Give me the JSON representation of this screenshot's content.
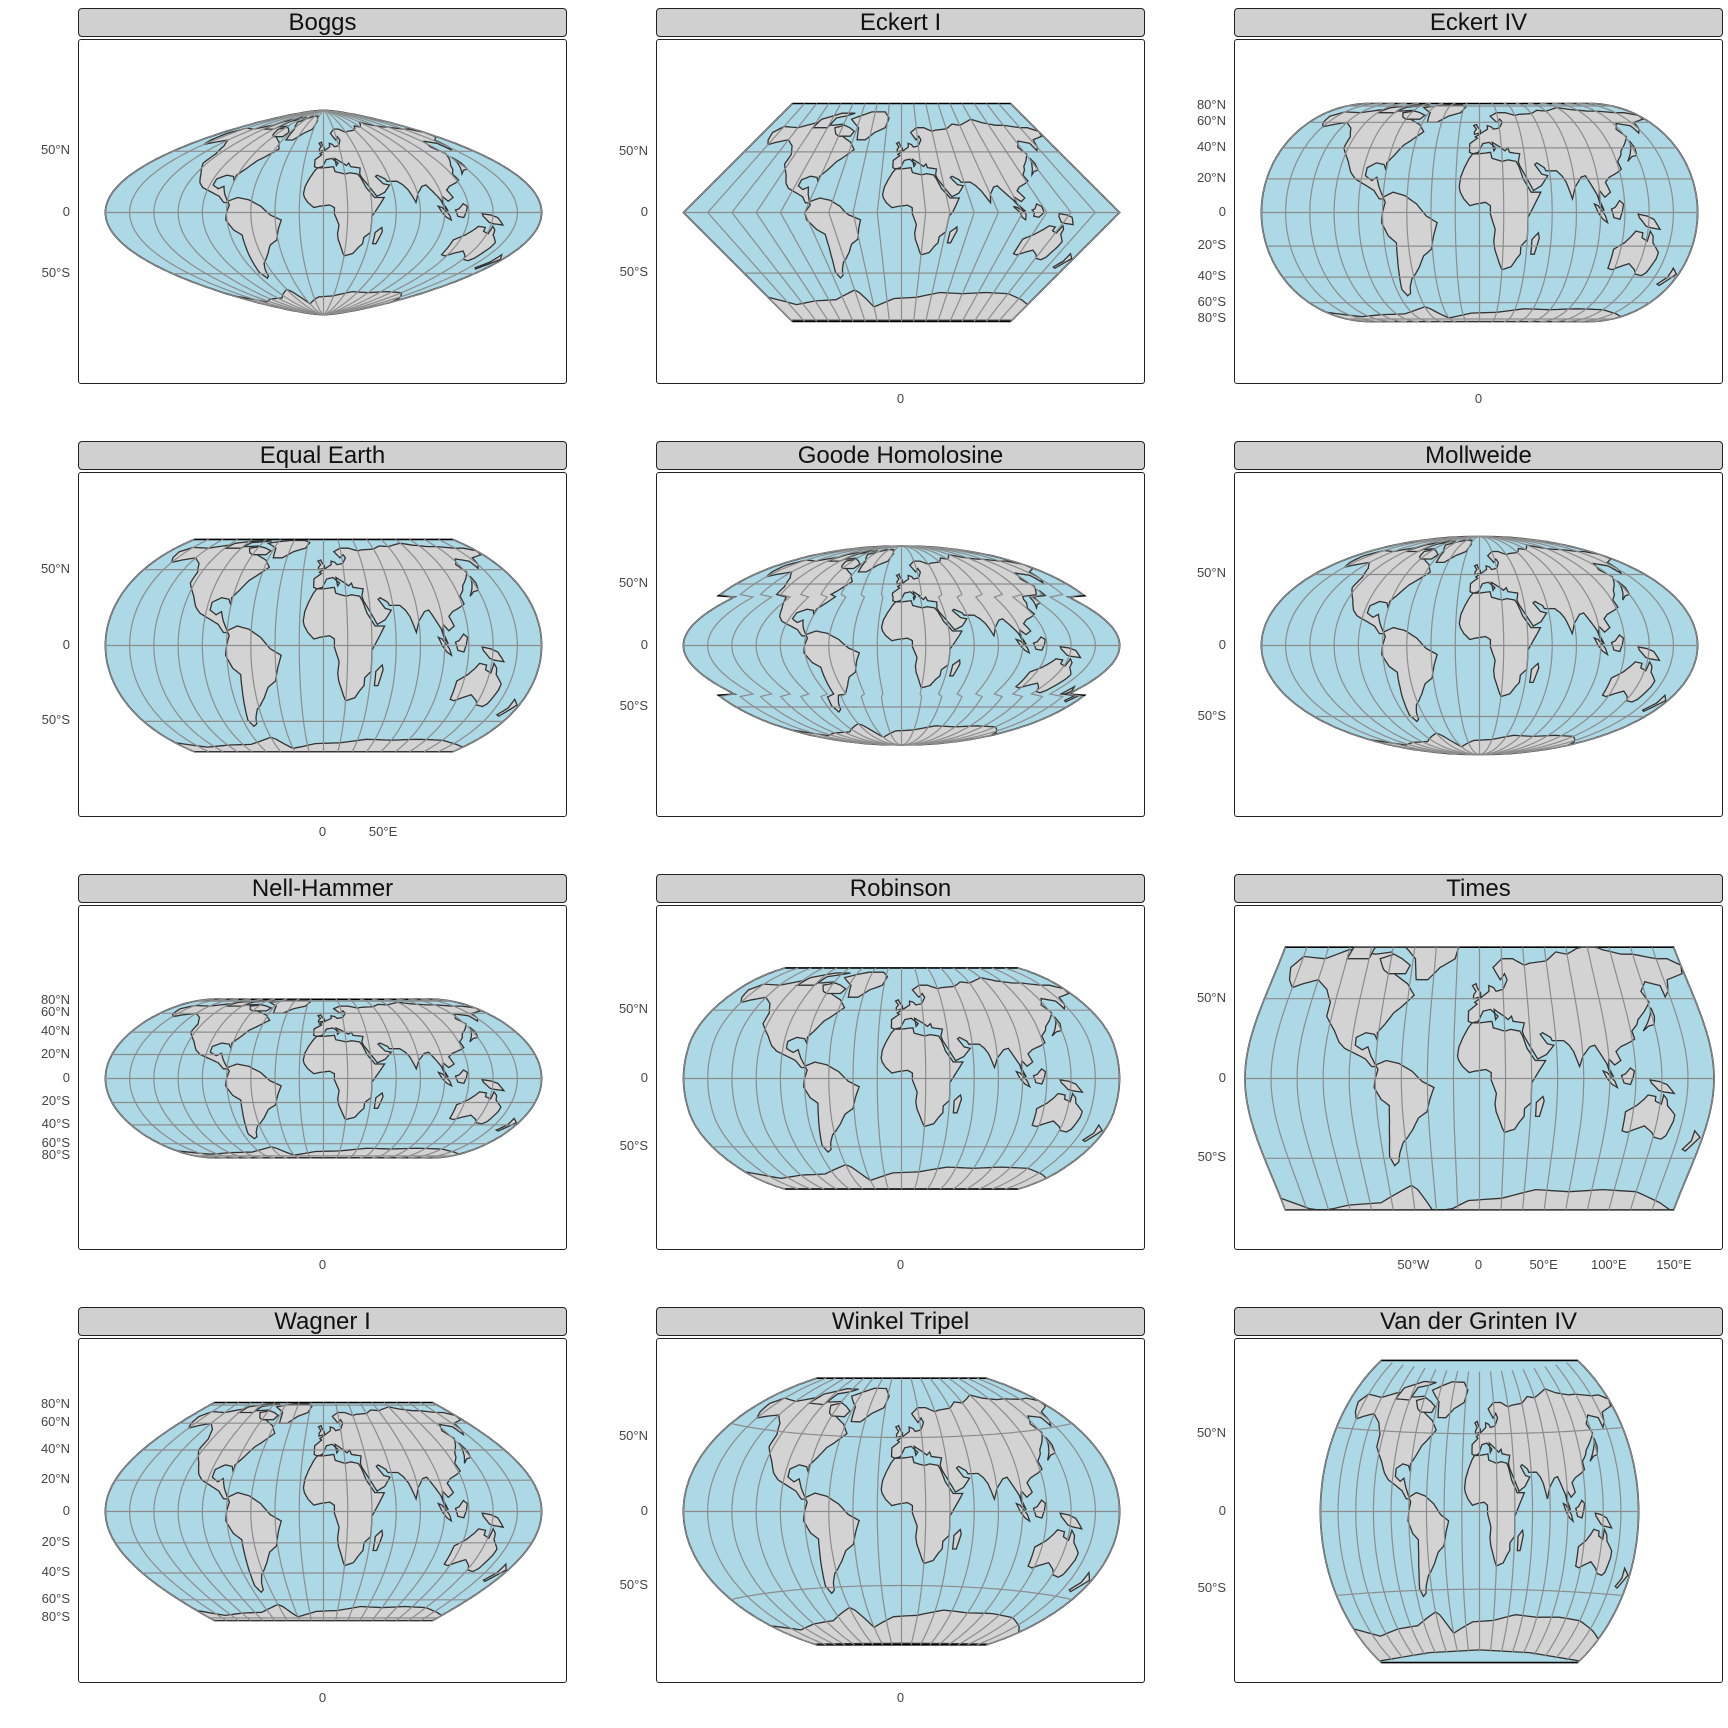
{
  "panels": [
    {
      "title": "Boggs",
      "proj": "boggs",
      "y_labels": [
        {
          "label": "50°N",
          "lat": 50
        },
        {
          "label": "0",
          "lat": 0
        },
        {
          "label": "50°S",
          "lat": -50
        }
      ],
      "x_labels": []
    },
    {
      "title": "Eckert I",
      "proj": "eckert1",
      "y_labels": [
        {
          "label": "50°N",
          "lat": 50
        },
        {
          "label": "0",
          "lat": 0
        },
        {
          "label": "50°S",
          "lat": -50
        }
      ],
      "x_labels": [
        {
          "label": "0",
          "lon": 0
        }
      ]
    },
    {
      "title": "Eckert IV",
      "proj": "eckert4",
      "y_labels": [
        {
          "label": "80°N",
          "lat": 80
        },
        {
          "label": "60°N",
          "lat": 60
        },
        {
          "label": "40°N",
          "lat": 40
        },
        {
          "label": "20°N",
          "lat": 20
        },
        {
          "label": "0",
          "lat": 0
        },
        {
          "label": "20°S",
          "lat": -20
        },
        {
          "label": "40°S",
          "lat": -40
        },
        {
          "label": "60°S",
          "lat": -60
        },
        {
          "label": "80°S",
          "lat": -80
        }
      ],
      "x_labels": [
        {
          "label": "0",
          "lon": 0
        }
      ]
    },
    {
      "title": "Equal Earth",
      "proj": "equalearth",
      "y_labels": [
        {
          "label": "50°N",
          "lat": 50
        },
        {
          "label": "0",
          "lat": 0
        },
        {
          "label": "50°S",
          "lat": -50
        }
      ],
      "x_labels": [
        {
          "label": "0",
          "lon": 0
        },
        {
          "label": "50°E",
          "lon": 50
        }
      ]
    },
    {
      "title": "Goode Homolosine",
      "proj": "goode",
      "y_labels": [
        {
          "label": "50°N",
          "lat": 50
        },
        {
          "label": "0",
          "lat": 0
        },
        {
          "label": "50°S",
          "lat": -50
        }
      ],
      "x_labels": []
    },
    {
      "title": "Mollweide",
      "proj": "mollweide",
      "y_labels": [
        {
          "label": "50°N",
          "lat": 50
        },
        {
          "label": "0",
          "lat": 0
        },
        {
          "label": "50°S",
          "lat": -50
        }
      ],
      "x_labels": []
    },
    {
      "title": "Nell-Hammer",
      "proj": "nellhammer",
      "y_labels": [
        {
          "label": "80°N",
          "lat": 80
        },
        {
          "label": "60°N",
          "lat": 60
        },
        {
          "label": "40°N",
          "lat": 40
        },
        {
          "label": "20°N",
          "lat": 20
        },
        {
          "label": "0",
          "lat": 0
        },
        {
          "label": "20°S",
          "lat": -20
        },
        {
          "label": "40°S",
          "lat": -40
        },
        {
          "label": "60°S",
          "lat": -60
        },
        {
          "label": "80°S",
          "lat": -80
        }
      ],
      "x_labels": [
        {
          "label": "0",
          "lon": 0
        }
      ]
    },
    {
      "title": "Robinson",
      "proj": "robinson",
      "y_labels": [
        {
          "label": "50°N",
          "lat": 50
        },
        {
          "label": "0",
          "lat": 0
        },
        {
          "label": "50°S",
          "lat": -50
        }
      ],
      "x_labels": [
        {
          "label": "0",
          "lon": 0
        }
      ]
    },
    {
      "title": "Times",
      "proj": "times",
      "y_labels": [
        {
          "label": "50°N",
          "lat": 50
        },
        {
          "label": "0",
          "lat": 0
        },
        {
          "label": "50°S",
          "lat": -50
        }
      ],
      "x_labels": [
        {
          "label": "50°W",
          "lon": -50
        },
        {
          "label": "0",
          "lon": 0
        },
        {
          "label": "50°E",
          "lon": 50
        },
        {
          "label": "100°E",
          "lon": 100
        },
        {
          "label": "150°E",
          "lon": 150
        }
      ]
    },
    {
      "title": "Wagner I",
      "proj": "wagner1",
      "y_labels": [
        {
          "label": "80°N",
          "lat": 80
        },
        {
          "label": "60°N",
          "lat": 60
        },
        {
          "label": "40°N",
          "lat": 40
        },
        {
          "label": "20°N",
          "lat": 20
        },
        {
          "label": "0",
          "lat": 0
        },
        {
          "label": "20°S",
          "lat": -20
        },
        {
          "label": "40°S",
          "lat": -40
        },
        {
          "label": "60°S",
          "lat": -60
        },
        {
          "label": "80°S",
          "lat": -80
        }
      ],
      "x_labels": [
        {
          "label": "0",
          "lon": 0
        }
      ]
    },
    {
      "title": "Winkel Tripel",
      "proj": "winkel",
      "y_labels": [
        {
          "label": "50°N",
          "lat": 50
        },
        {
          "label": "0",
          "lat": 0
        },
        {
          "label": "50°S",
          "lat": -50
        }
      ],
      "x_labels": [
        {
          "label": "0",
          "lon": 0
        }
      ]
    },
    {
      "title": "Van der Grinten IV",
      "proj": "vdg4",
      "y_labels": [
        {
          "label": "50°N",
          "lat": 50
        },
        {
          "label": "0",
          "lat": 0
        },
        {
          "label": "50°S",
          "lat": -50
        }
      ],
      "x_labels": []
    }
  ],
  "colors": {
    "ocean": "#add8e6",
    "land": "#d3d3d3",
    "graticule": "#8c8c8c",
    "outline": "#000000",
    "border": "#333333",
    "strip": "#d0d0d0"
  }
}
